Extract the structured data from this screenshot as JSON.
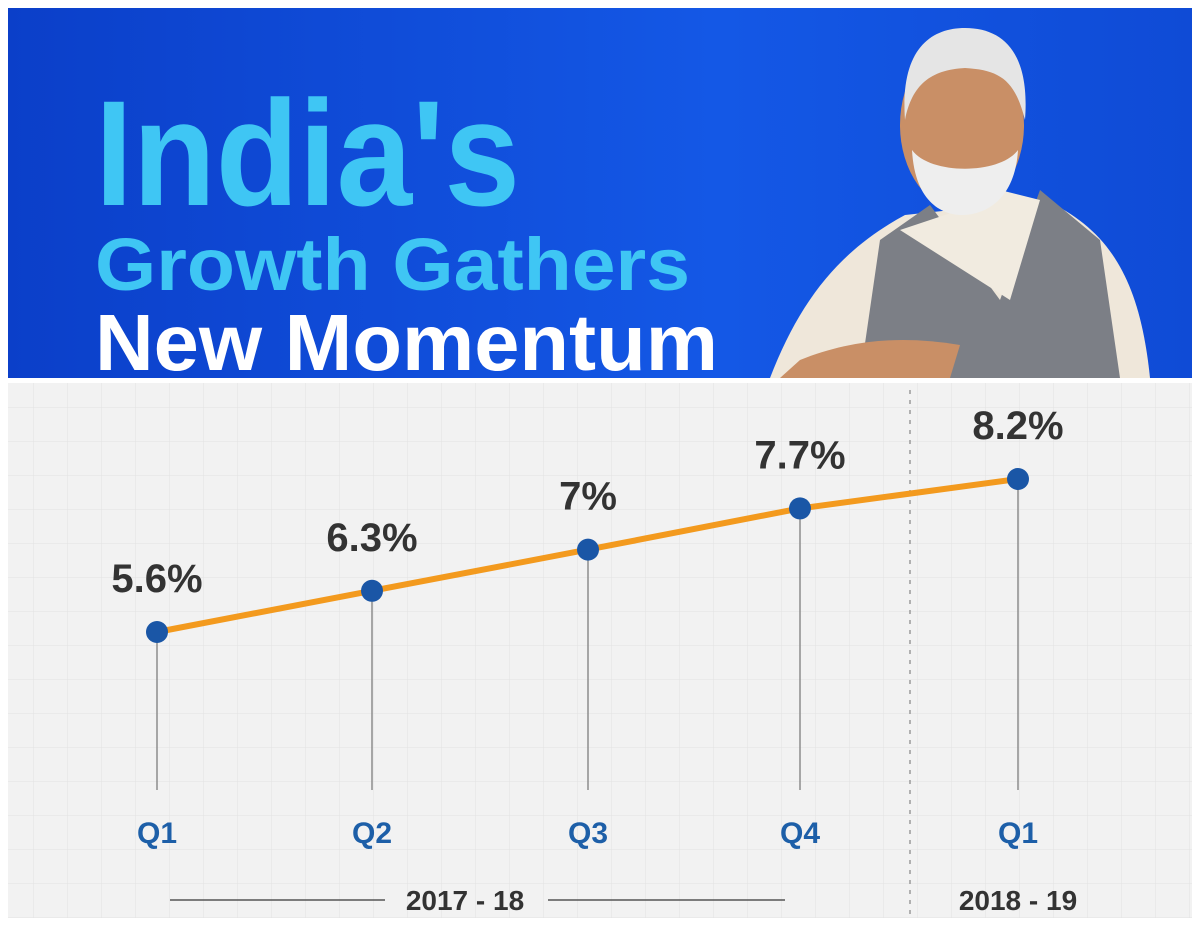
{
  "chart_data": {
    "type": "line",
    "title": [
      "India's",
      "Growth Gathers",
      "New Momentum"
    ],
    "categories": [
      "Q1",
      "Q2",
      "Q3",
      "Q4",
      "Q1"
    ],
    "values": [
      5.6,
      6.3,
      7,
      7.7,
      8.2
    ],
    "value_labels": [
      "5.6%",
      "6.3%",
      "7%",
      "7.7%",
      "8.2%"
    ],
    "color": "#f39a1e",
    "marker_color": "#1a56a6",
    "group_labels": [
      "2017 - 18",
      "2018 - 19"
    ]
  }
}
